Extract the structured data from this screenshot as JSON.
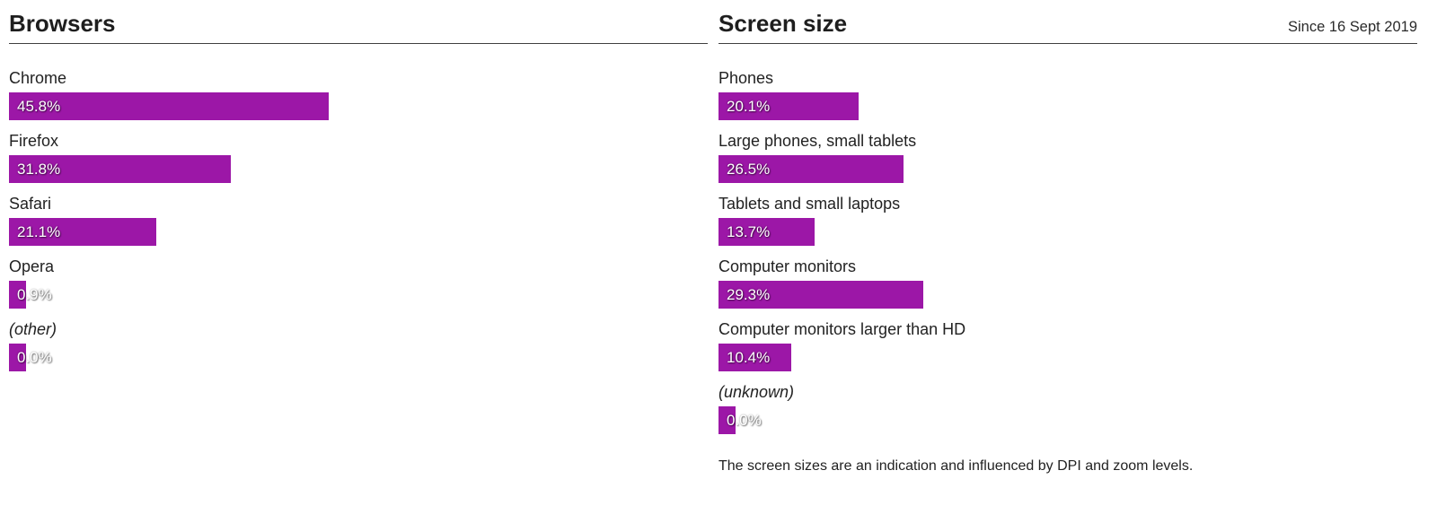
{
  "accent_color": "#9c17a7",
  "panels": [
    {
      "id": "browsers",
      "title": "Browsers",
      "subtitle": "",
      "rows": [
        {
          "label": "Chrome",
          "value": "45.8%",
          "pct": 45.8,
          "italic": false
        },
        {
          "label": "Firefox",
          "value": "31.8%",
          "pct": 31.8,
          "italic": false
        },
        {
          "label": "Safari",
          "value": "21.1%",
          "pct": 21.1,
          "italic": false
        },
        {
          "label": "Opera",
          "value": "0.9%",
          "pct": 0.9,
          "italic": false
        },
        {
          "label": "(other)",
          "value": "0.0%",
          "pct": 0.0,
          "italic": true
        }
      ],
      "footnote": ""
    },
    {
      "id": "screen-size",
      "title": "Screen size",
      "subtitle": "Since 16 Sept 2019",
      "rows": [
        {
          "label": "Phones",
          "value": "20.1%",
          "pct": 20.1,
          "italic": false
        },
        {
          "label": "Large phones, small tablets",
          "value": "26.5%",
          "pct": 26.5,
          "italic": false
        },
        {
          "label": "Tablets and small laptops",
          "value": "13.7%",
          "pct": 13.7,
          "italic": false
        },
        {
          "label": "Computer monitors",
          "value": "29.3%",
          "pct": 29.3,
          "italic": false
        },
        {
          "label": "Computer monitors larger than HD",
          "value": "10.4%",
          "pct": 10.4,
          "italic": false
        },
        {
          "label": "(unknown)",
          "value": "0.0%",
          "pct": 0.0,
          "italic": true
        }
      ],
      "footnote": "The screen sizes are an indication and influenced by DPI and zoom levels."
    }
  ],
  "chart_data": [
    {
      "type": "bar",
      "orientation": "horizontal",
      "title": "Browsers",
      "categories": [
        "Chrome",
        "Firefox",
        "Safari",
        "Opera",
        "(other)"
      ],
      "values": [
        45.8,
        31.8,
        21.1,
        0.9,
        0.0
      ],
      "unit": "%",
      "xlim": [
        0,
        100
      ],
      "grid": false,
      "legend": "none",
      "bar_color": "#9c17a7",
      "value_labels_inside_bars": true
    },
    {
      "type": "bar",
      "orientation": "horizontal",
      "title": "Screen size",
      "subtitle": "Since 16 Sept 2019",
      "categories": [
        "Phones",
        "Large phones, small tablets",
        "Tablets and small laptops",
        "Computer monitors",
        "Computer monitors larger than HD",
        "(unknown)"
      ],
      "values": [
        20.1,
        26.5,
        13.7,
        29.3,
        10.4,
        0.0
      ],
      "unit": "%",
      "xlim": [
        0,
        100
      ],
      "grid": false,
      "legend": "none",
      "bar_color": "#9c17a7",
      "value_labels_inside_bars": true,
      "annotation": "The screen sizes are an indication and influenced by DPI and zoom levels."
    }
  ]
}
